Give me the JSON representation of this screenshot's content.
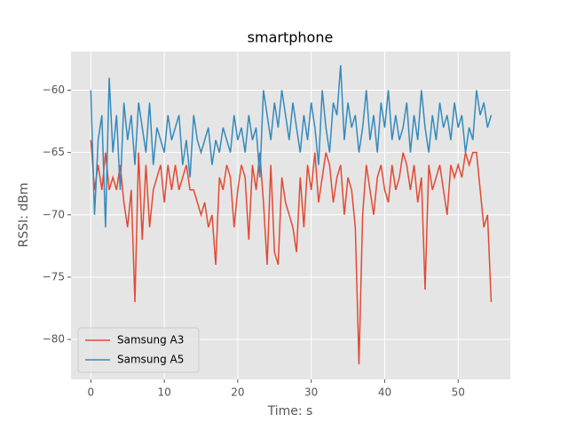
{
  "chart_data": {
    "type": "line",
    "title": "smartphone",
    "x_label": "Time: s",
    "y_label": "RSSI: dBm",
    "x": [
      0,
      0.5,
      1,
      1.5,
      2,
      2.5,
      3,
      3.5,
      4,
      4.5,
      5,
      5.5,
      6,
      6.5,
      7,
      7.5,
      8,
      8.5,
      9,
      9.5,
      10,
      10.5,
      11,
      11.5,
      12,
      12.5,
      13,
      13.5,
      14,
      14.5,
      15,
      15.5,
      16,
      16.5,
      17,
      17.5,
      18,
      18.5,
      19,
      19.5,
      20,
      20.5,
      21,
      21.5,
      22,
      22.5,
      23,
      23.5,
      24,
      24.5,
      25,
      25.5,
      26,
      26.5,
      27,
      27.5,
      28,
      28.5,
      29,
      29.5,
      30,
      30.5,
      31,
      31.5,
      32,
      32.5,
      33,
      33.5,
      34,
      34.5,
      35,
      35.5,
      36,
      36.5,
      37,
      37.5,
      38,
      38.5,
      39,
      39.5,
      40,
      40.5,
      41,
      41.5,
      42,
      42.5,
      43,
      43.5,
      44,
      44.5,
      45,
      45.5,
      46,
      46.5,
      47,
      47.5,
      48,
      48.5,
      49,
      49.5,
      50,
      50.5,
      51,
      51.5,
      52,
      52.5,
      53,
      53.5,
      54,
      54.5
    ],
    "series": [
      {
        "name": "Samsung A3",
        "color": "#E24A33",
        "values": [
          -64,
          -68,
          -66,
          -68,
          -65,
          -68,
          -67,
          -68,
          -66,
          -69,
          -71,
          -68,
          -77,
          -65,
          -72,
          -66,
          -71,
          -68,
          -67,
          -66,
          -69,
          -66,
          -68,
          -66,
          -68,
          -67,
          -66,
          -68,
          -68,
          -69,
          -70,
          -69,
          -71,
          -70,
          -74,
          -67,
          -68,
          -66,
          -67,
          -71,
          -68,
          -66,
          -67,
          -72,
          -66,
          -68,
          -65,
          -69,
          -74,
          -66,
          -73,
          -74,
          -67,
          -69,
          -70,
          -71,
          -73,
          -67,
          -71,
          -66,
          -68,
          -65,
          -69,
          -67,
          -65,
          -66,
          -69,
          -67,
          -66,
          -70,
          -67,
          -68,
          -71,
          -82,
          -70,
          -66,
          -68,
          -70,
          -67,
          -66,
          -68,
          -69,
          -66,
          -68,
          -67,
          -65,
          -66,
          -68,
          -66,
          -69,
          -67,
          -76,
          -66,
          -68,
          -67,
          -66,
          -68,
          -70,
          -66,
          -67,
          -66,
          -67,
          -65,
          -66,
          -65,
          -65,
          -68,
          -71,
          -70,
          -77
        ]
      },
      {
        "name": "Samsung A5",
        "color": "#348ABD",
        "values": [
          -60,
          -70,
          -64,
          -62,
          -71,
          -59,
          -65,
          -62,
          -68,
          -61,
          -64,
          -62,
          -66,
          -61,
          -63,
          -65,
          -61,
          -66,
          -63,
          -64,
          -65,
          -62,
          -64,
          -63,
          -62,
          -66,
          -64,
          -67,
          -62,
          -64,
          -65,
          -64,
          -63,
          -66,
          -64,
          -65,
          -63,
          -64,
          -65,
          -62,
          -64,
          -63,
          -65,
          -62,
          -64,
          -63,
          -67,
          -60,
          -62,
          -64,
          -61,
          -63,
          -60,
          -62,
          -64,
          -61,
          -63,
          -65,
          -62,
          -64,
          -61,
          -63,
          -66,
          -60,
          -63,
          -65,
          -61,
          -62,
          -58,
          -64,
          -61,
          -63,
          -62,
          -65,
          -63,
          -60,
          -64,
          -62,
          -65,
          -61,
          -63,
          -60,
          -64,
          -62,
          -64,
          -63,
          -61,
          -65,
          -62,
          -64,
          -60,
          -63,
          -65,
          -62,
          -64,
          -61,
          -63,
          -62,
          -64,
          -61,
          -63,
          -62,
          -65,
          -63,
          -64,
          -60,
          -62,
          -61,
          -63,
          -62
        ]
      }
    ],
    "xlim": [
      -2.7,
      57.1
    ],
    "ylim": [
      -83.2,
      -56.9
    ],
    "xticks": [
      0,
      10,
      20,
      30,
      40,
      50
    ],
    "yticks": [
      {
        "value": -80,
        "label": "−80"
      },
      {
        "value": -75,
        "label": "−75"
      },
      {
        "value": -70,
        "label": "−70"
      },
      {
        "value": -65,
        "label": "−65"
      },
      {
        "value": -60,
        "label": "−60"
      }
    ],
    "grid": true,
    "legend": "lower left"
  }
}
